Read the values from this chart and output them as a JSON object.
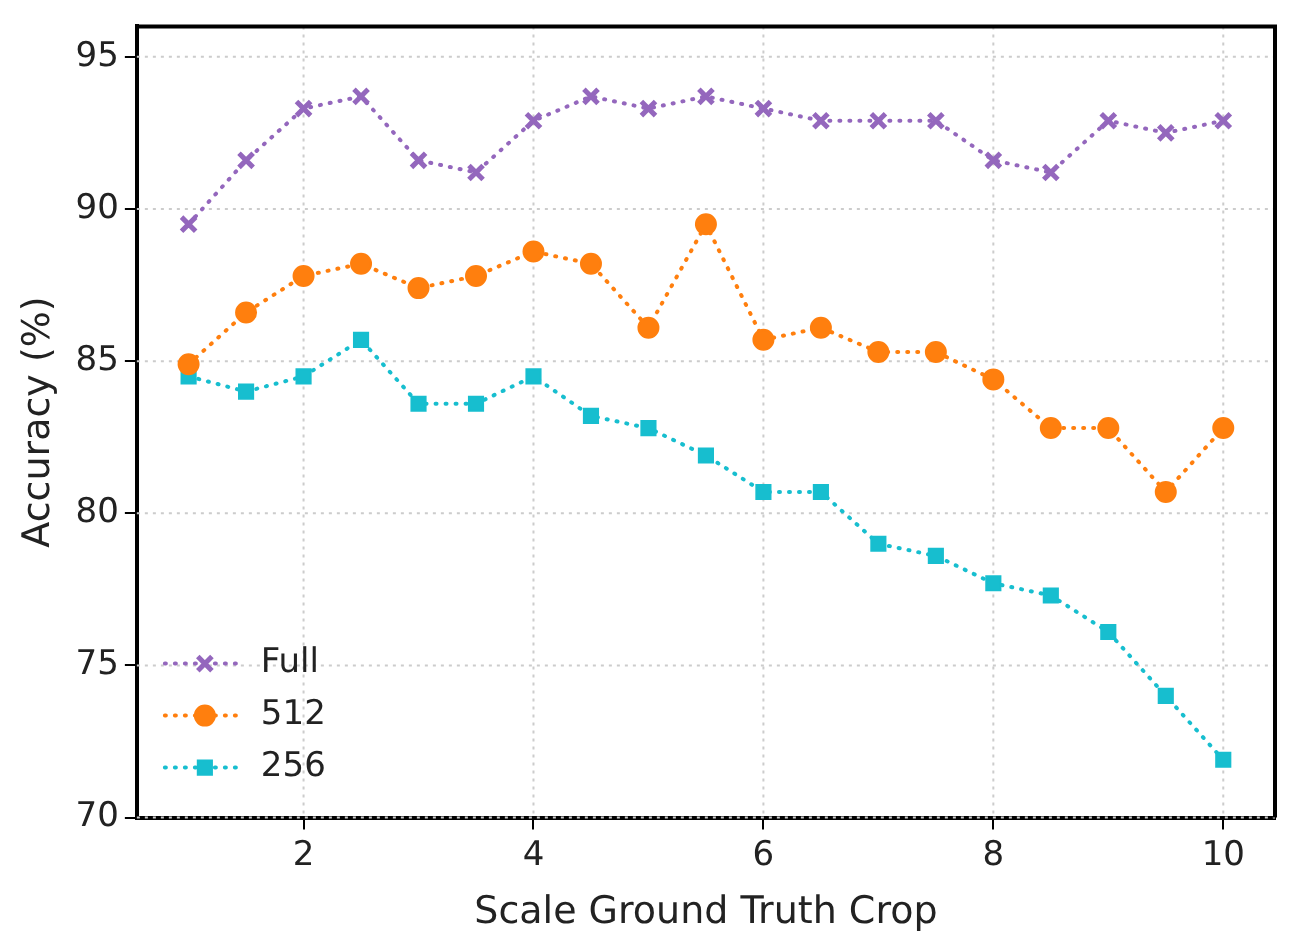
{
  "chart_data": {
    "type": "line",
    "xlabel": "Scale Ground Truth Crop",
    "ylabel": "Accuracy (%)",
    "x": [
      1,
      1.5,
      2,
      2.5,
      3,
      3.5,
      4,
      4.5,
      5,
      5.5,
      6,
      6.5,
      7,
      7.5,
      8,
      8.5,
      9,
      9.5,
      10
    ],
    "series": [
      {
        "name": "Full",
        "color": "#9467bd",
        "marker": "cross",
        "values": [
          89.5,
          91.6,
          93.3,
          93.7,
          91.6,
          91.2,
          92.9,
          93.7,
          93.3,
          93.7,
          93.3,
          92.9,
          92.9,
          92.9,
          91.6,
          91.2,
          92.9,
          92.5,
          92.9
        ]
      },
      {
        "name": "512",
        "color": "#ff7f0e",
        "marker": "circle",
        "values": [
          84.9,
          86.6,
          87.8,
          88.2,
          87.4,
          87.8,
          88.6,
          88.2,
          86.1,
          89.5,
          85.7,
          86.1,
          85.3,
          85.3,
          84.4,
          82.8,
          82.8,
          80.7,
          82.8
        ]
      },
      {
        "name": "256",
        "color": "#17becf",
        "marker": "square",
        "values": [
          84.5,
          84.0,
          84.5,
          85.7,
          83.6,
          83.6,
          84.5,
          83.2,
          82.8,
          81.9,
          80.7,
          80.7,
          79.0,
          78.6,
          77.7,
          77.3,
          76.1,
          74.0,
          71.9
        ]
      }
    ],
    "xlim": [
      0.55,
      10.45
    ],
    "xticks": [
      2,
      4,
      6,
      8,
      10
    ],
    "ylim": [
      70,
      96
    ],
    "yticks": [
      70,
      75,
      80,
      85,
      90,
      95
    ],
    "grid": true,
    "legend": "bottom left",
    "line_style": "dotted"
  }
}
